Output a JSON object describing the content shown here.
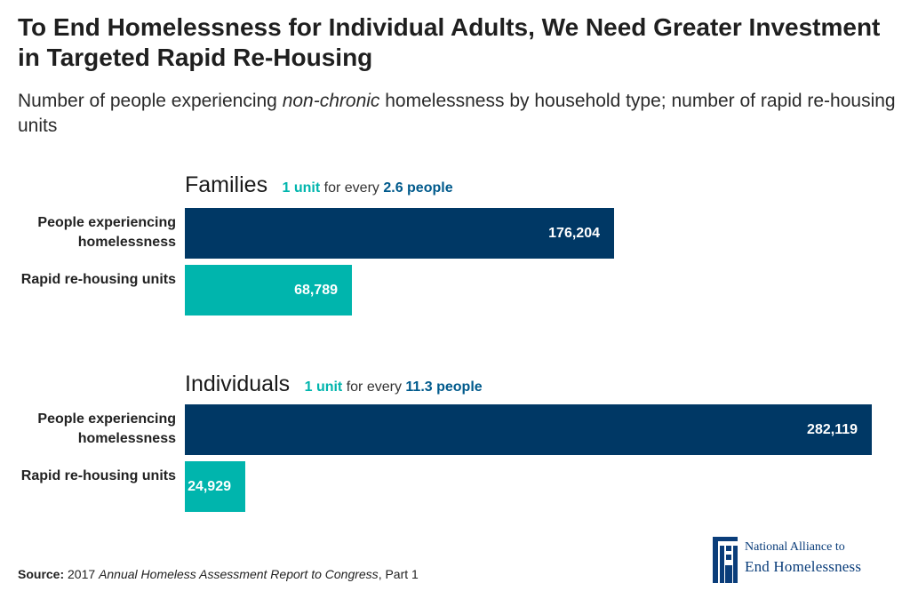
{
  "title": "To End Homelessness for Individual Adults, We Need Greater Investment in Targeted Rapid Re-Housing",
  "subtitle": {
    "before": "Number of people experiencing ",
    "emphasis": "non-chronic",
    "after": " homelessness by household type; number of rapid re-housing units"
  },
  "colors": {
    "people_bar": "#003865",
    "units_bar": "#00b5ad",
    "units_text": "#00b5ad",
    "people_text": "#005a8c",
    "logo": "#0a3d7a"
  },
  "chart_data": {
    "type": "bar",
    "orientation": "horizontal",
    "xlim": [
      0,
      282119
    ],
    "groups": [
      {
        "name": "Families",
        "ratio": {
          "units": "1 unit",
          "middle": " for every ",
          "people": "2.6 people"
        },
        "rows": [
          {
            "label": "People experiencing homelessness",
            "value": 176204,
            "display": "176,204",
            "kind": "people"
          },
          {
            "label": "Rapid re-housing units",
            "value": 68789,
            "display": "68,789",
            "kind": "units"
          }
        ]
      },
      {
        "name": "Individuals",
        "ratio": {
          "units": "1 unit",
          "middle": " for every ",
          "people": "11.3 people"
        },
        "rows": [
          {
            "label": "People experiencing homelessness",
            "value": 282119,
            "display": "282,119",
            "kind": "people"
          },
          {
            "label": "Rapid re-housing units",
            "value": 24929,
            "display": "24,929",
            "kind": "units"
          }
        ]
      }
    ]
  },
  "source": {
    "label": "Source:",
    "before": " 2017 ",
    "italic": "Annual Homeless Assessment Report to Congress",
    "after": ", Part 1"
  },
  "logo": {
    "line1": "National Alliance to",
    "line2": "End Homelessness",
    "icon": "building-icon"
  }
}
